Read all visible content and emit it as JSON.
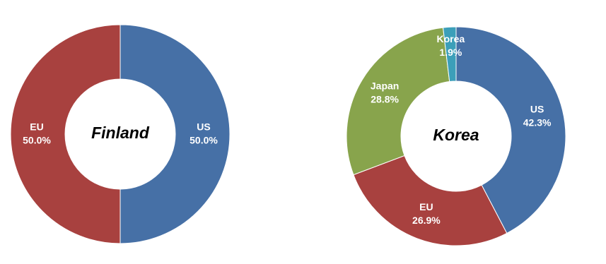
{
  "chart_data": [
    {
      "type": "donut",
      "title": "Finland",
      "categories": [
        "US",
        "EU"
      ],
      "values": [
        50,
        50
      ],
      "value_labels": [
        "50.0%",
        "50.0%"
      ],
      "colors": [
        "#4670a6",
        "#a8413f"
      ]
    },
    {
      "type": "donut",
      "title": "Korea",
      "categories": [
        "US",
        "EU",
        "Japan",
        "Korea"
      ],
      "values": [
        42.3,
        26.9,
        28.8,
        1.9
      ],
      "value_labels": [
        "42.3%",
        "26.9%",
        "28.8%",
        "1.9%"
      ],
      "colors": [
        "#4670a6",
        "#a8413f",
        "#88a44c",
        "#3c9fb9"
      ]
    }
  ]
}
